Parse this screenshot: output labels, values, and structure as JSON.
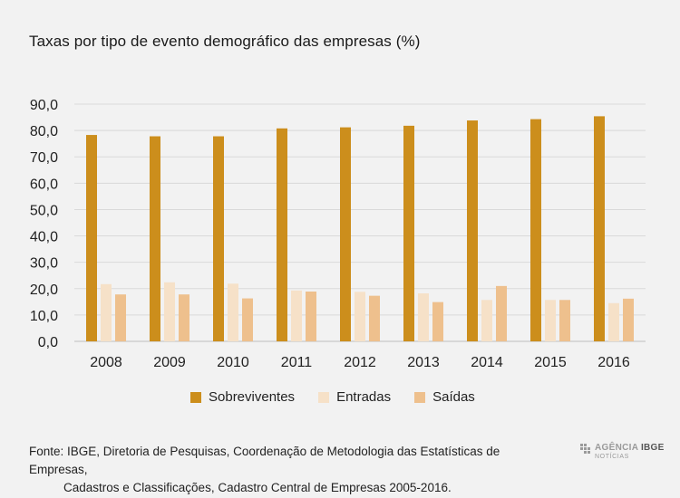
{
  "title": "Taxas por tipo de evento demográfico das empresas (%)",
  "source_line1": "Fonte: IBGE, Diretoria de Pesquisas, Coordenação de Metodologia das Estatísticas de Empresas,",
  "source_line2": "Cadastros e Classificações, Cadastro Central de Empresas 2005-2016.",
  "logo": {
    "agencia": "AGÊNCIA",
    "ibge": "IBGE",
    "noticias": "NOTÍCIAS"
  },
  "colors": {
    "background": "#f2f2f2",
    "grid": "#d9d9d9",
    "axis": "#bfbfbf"
  },
  "chart_data": {
    "type": "bar",
    "title": "Taxas por tipo de evento demográfico das empresas (%)",
    "xlabel": "",
    "ylabel": "",
    "ylim": [
      0,
      90
    ],
    "yticks": [
      "0,0",
      "10,0",
      "20,0",
      "30,0",
      "40,0",
      "50,0",
      "60,0",
      "70,0",
      "80,0",
      "90,0"
    ],
    "categories": [
      "2008",
      "2009",
      "2010",
      "2011",
      "2012",
      "2013",
      "2014",
      "2015",
      "2016"
    ],
    "legend_position": "bottom",
    "series": [
      {
        "name": "Sobreviventes",
        "color": "#cc8e1c",
        "values": [
          78.3,
          77.8,
          77.8,
          80.8,
          81.2,
          81.8,
          83.8,
          84.3,
          85.4
        ]
      },
      {
        "name": "Entradas",
        "color": "#f6e1c8",
        "values": [
          21.7,
          22.4,
          21.9,
          19.3,
          18.8,
          18.2,
          15.7,
          15.7,
          14.5
        ]
      },
      {
        "name": "Saídas",
        "color": "#eec08d",
        "values": [
          17.8,
          17.8,
          16.3,
          18.9,
          17.3,
          14.9,
          21.0,
          15.7,
          16.2
        ]
      }
    ]
  }
}
